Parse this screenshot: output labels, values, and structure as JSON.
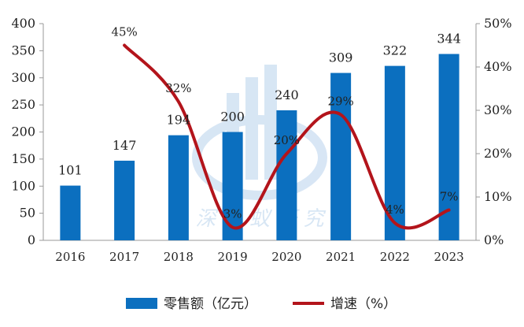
{
  "chart_data": {
    "type": "bar+line",
    "categories": [
      "2016",
      "2017",
      "2018",
      "2019",
      "2020",
      "2021",
      "2022",
      "2023"
    ],
    "series": [
      {
        "name": "零售额（亿元）",
        "kind": "bar",
        "axis": "left",
        "color": "#0B6FBF",
        "values": [
          101,
          147,
          194,
          200,
          240,
          309,
          322,
          344
        ],
        "labels": [
          "101",
          "147",
          "194",
          "200",
          "240",
          "309",
          "322",
          "344"
        ]
      },
      {
        "name": "增速（%）",
        "kind": "line",
        "axis": "right",
        "color": "#B3141B",
        "values": [
          null,
          45,
          32,
          3,
          20,
          29,
          4,
          7
        ],
        "labels": [
          "",
          "45%",
          "32%",
          "3%",
          "20%",
          "29%",
          "4%",
          "7%"
        ]
      }
    ],
    "y_left": {
      "min": 0,
      "max": 400,
      "ticks": [
        "0",
        "50",
        "100",
        "150",
        "200",
        "250",
        "300",
        "350",
        "400"
      ]
    },
    "y_right": {
      "min": 0,
      "max": 50,
      "ticks": [
        "0%",
        "10%",
        "20%",
        "30%",
        "40%",
        "50%"
      ]
    },
    "grid": false,
    "legend_position": "bottom"
  }
}
